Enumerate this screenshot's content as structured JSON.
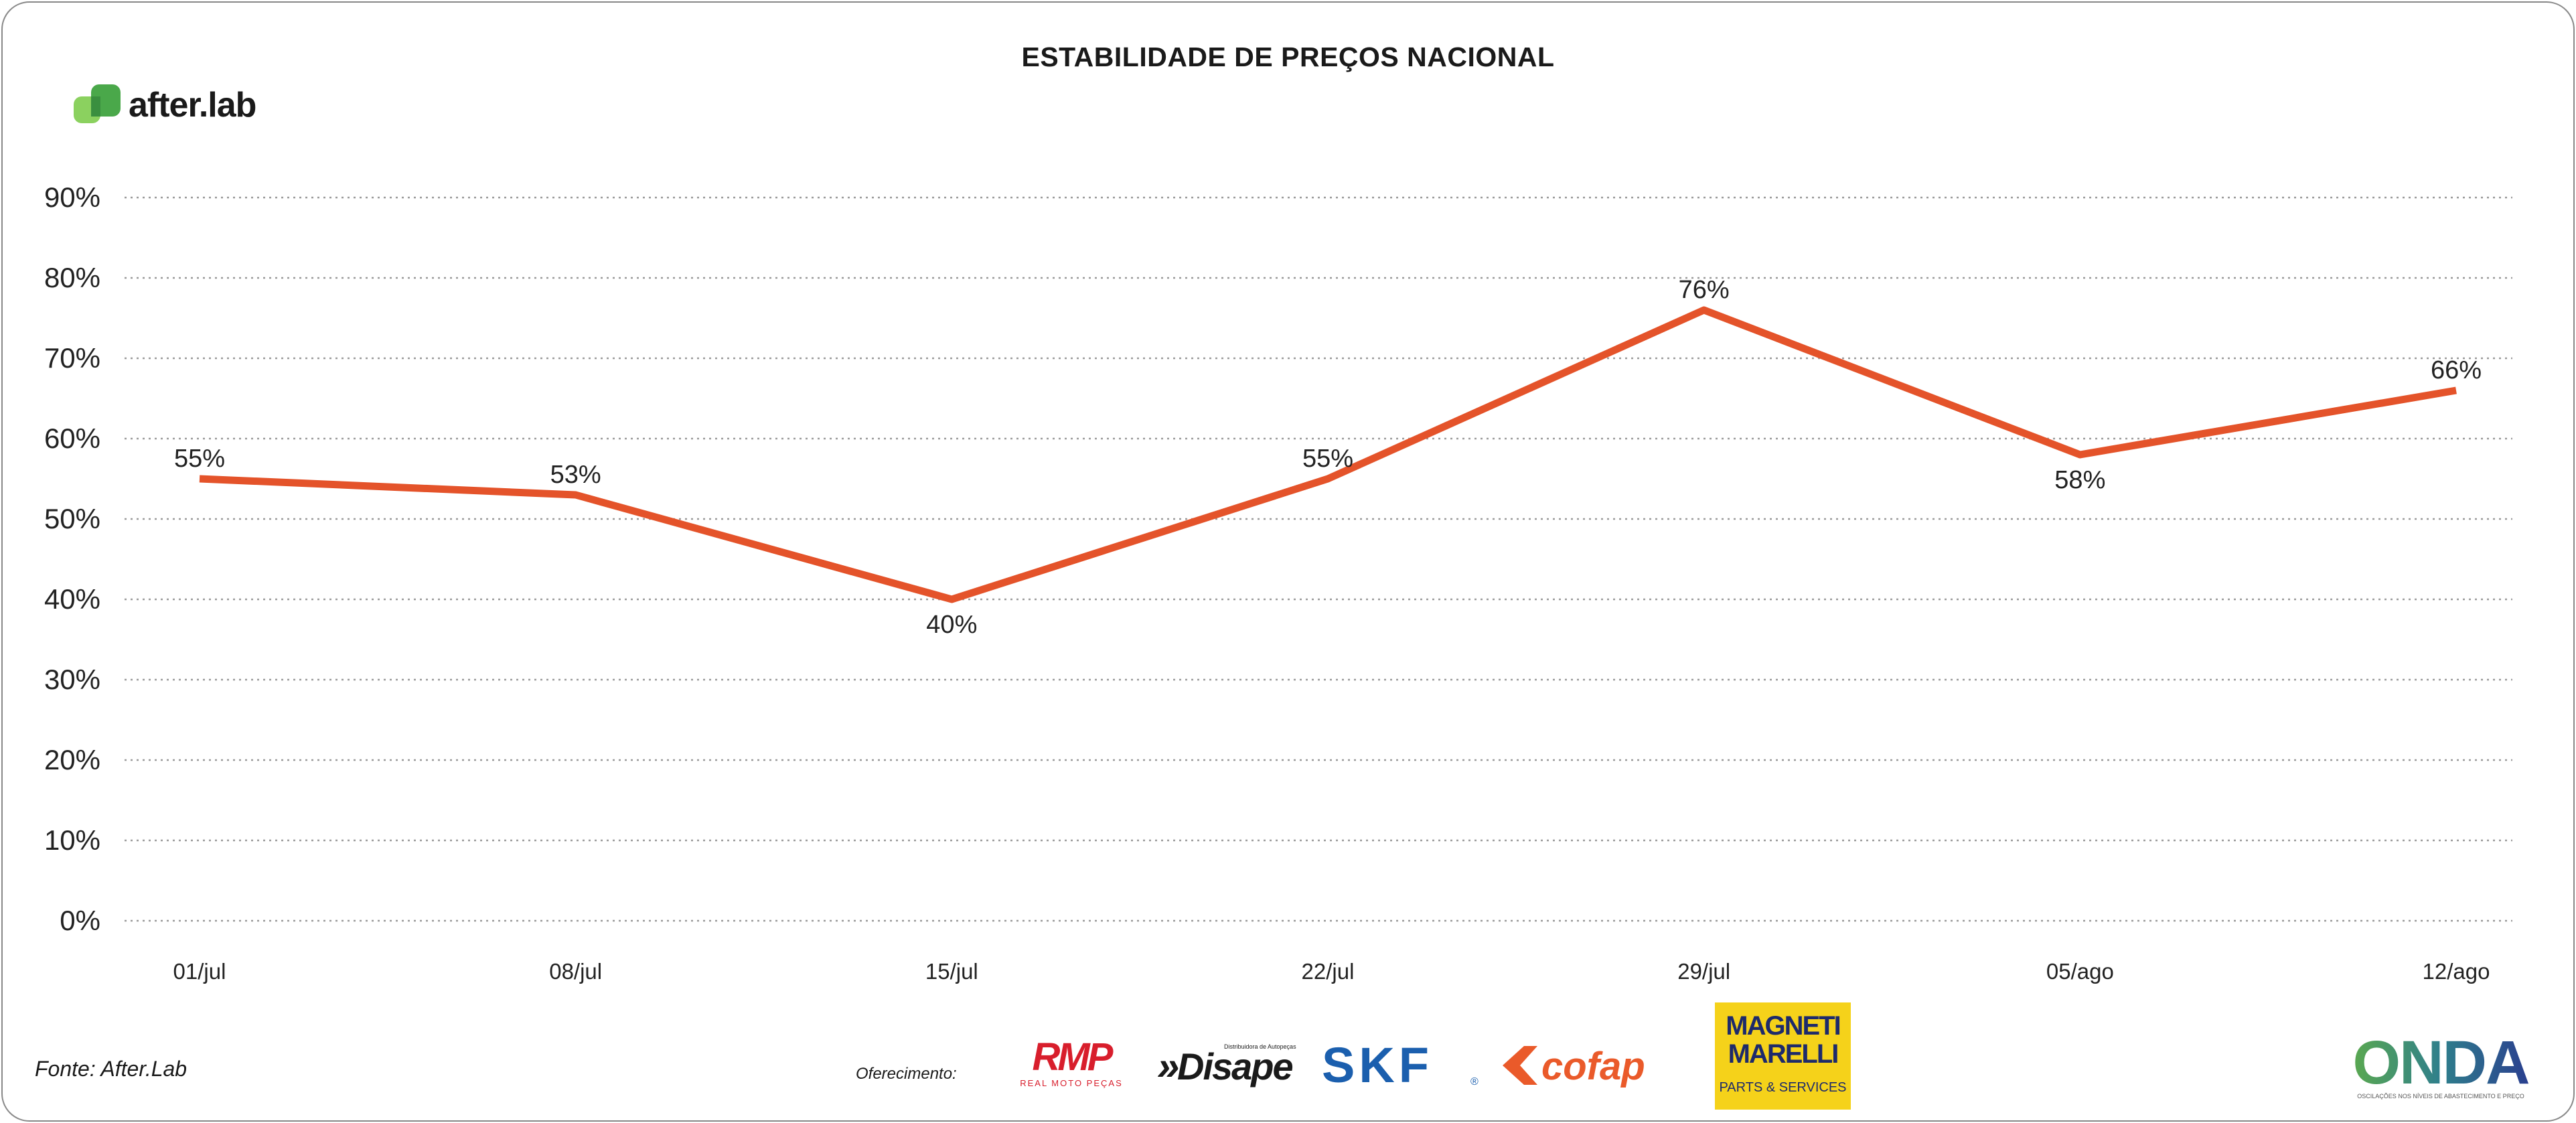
{
  "header": {
    "title": "ESTABILIDADE DE PREÇOS NACIONAL"
  },
  "brand": {
    "name": "after.lab",
    "color": "#6cc04a"
  },
  "footer": {
    "source": "Fonte: After.Lab",
    "sponsor_label": "Oferecimento:",
    "sponsors": {
      "rmp": {
        "name": "RMP",
        "tagline": "REAL MOTO PEÇAS",
        "color": "#d81e2c"
      },
      "disape": {
        "name": "Disape",
        "tagline": "Distribuidora de Autopeças",
        "color": "#1a1a1a"
      },
      "skf": {
        "name": "SKF",
        "color": "#1b5fae"
      },
      "cofap": {
        "name": "cofap",
        "color": "#ea5a2a"
      },
      "magneti": {
        "line1": "MAGNETI",
        "line2": "MARELLI",
        "sub": "PARTS & SERVICES",
        "bg": "#f5d21a"
      },
      "onda": {
        "name": "ONDA",
        "tagline": "OSCILAÇÕES NOS NÍVEIS DE ABASTECIMENTO E PREÇO"
      }
    }
  },
  "chart_data": {
    "type": "line",
    "title": "ESTABILIDADE DE PREÇOS NACIONAL",
    "categories": [
      "01/jul",
      "08/jul",
      "15/jul",
      "22/jul",
      "29/jul",
      "05/ago",
      "12/ago"
    ],
    "series": [
      {
        "values": [
          55,
          53,
          40,
          55,
          76,
          58,
          66
        ],
        "color": "#e4532a"
      }
    ],
    "data_labels": [
      "55%",
      "53%",
      "40%",
      "55%",
      "76%",
      "58%",
      "66%"
    ],
    "y_ticks": [
      "0%",
      "10%",
      "20%",
      "30%",
      "40%",
      "50%",
      "60%",
      "70%",
      "80%",
      "90%"
    ],
    "ylim": [
      0,
      90
    ],
    "grid": true,
    "legend": "none"
  }
}
